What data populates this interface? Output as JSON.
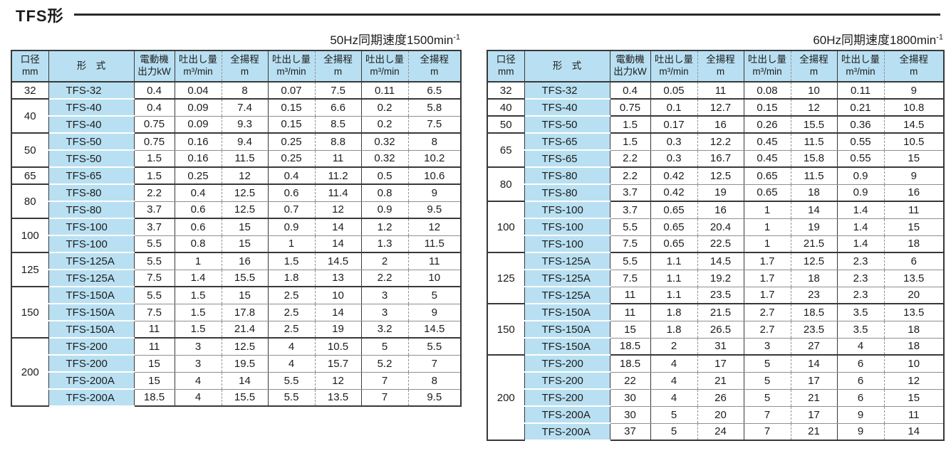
{
  "title": "TFS形",
  "column_headers": {
    "bore": [
      "口径",
      "mm"
    ],
    "model": [
      "形　式"
    ],
    "motor": [
      "電動機",
      "出力kW"
    ],
    "discharge": [
      "吐出し量",
      "m³/min"
    ],
    "head": [
      "全揚程",
      "m"
    ]
  },
  "colors": {
    "header_blue": "#b9e0f2",
    "border_dark": "#383838",
    "border_light": "#8f8f8f"
  },
  "tables": [
    {
      "id": "50hz",
      "caption_text": "50Hz同期速度1500min",
      "caption_sup": "-1",
      "groups": [
        {
          "bore": "32",
          "rows": [
            [
              "TFS-32",
              "0.4",
              "0.04",
              "8",
              "0.07",
              "7.5",
              "0.11",
              "6.5"
            ]
          ]
        },
        {
          "bore": "40",
          "rows": [
            [
              "TFS-40",
              "0.4",
              "0.09",
              "7.4",
              "0.15",
              "6.6",
              "0.2",
              "5.8"
            ],
            [
              "TFS-40",
              "0.75",
              "0.09",
              "9.3",
              "0.15",
              "8.5",
              "0.2",
              "7.5"
            ]
          ]
        },
        {
          "bore": "50",
          "rows": [
            [
              "TFS-50",
              "0.75",
              "0.16",
              "9.4",
              "0.25",
              "8.8",
              "0.32",
              "8"
            ],
            [
              "TFS-50",
              "1.5",
              "0.16",
              "11.5",
              "0.25",
              "11",
              "0.32",
              "10.2"
            ]
          ]
        },
        {
          "bore": "65",
          "rows": [
            [
              "TFS-65",
              "1.5",
              "0.25",
              "12",
              "0.4",
              "11.2",
              "0.5",
              "10.6"
            ]
          ]
        },
        {
          "bore": "80",
          "rows": [
            [
              "TFS-80",
              "2.2",
              "0.4",
              "12.5",
              "0.6",
              "11.4",
              "0.8",
              "9"
            ],
            [
              "TFS-80",
              "3.7",
              "0.6",
              "12.5",
              "0.7",
              "12",
              "0.9",
              "9.5"
            ]
          ]
        },
        {
          "bore": "100",
          "rows": [
            [
              "TFS-100",
              "3.7",
              "0.6",
              "15",
              "0.9",
              "14",
              "1.2",
              "12"
            ],
            [
              "TFS-100",
              "5.5",
              "0.8",
              "15",
              "1",
              "14",
              "1.3",
              "11.5"
            ]
          ]
        },
        {
          "bore": "125",
          "rows": [
            [
              "TFS-125A",
              "5.5",
              "1",
              "16",
              "1.5",
              "14.5",
              "2",
              "11"
            ],
            [
              "TFS-125A",
              "7.5",
              "1.4",
              "15.5",
              "1.8",
              "13",
              "2.2",
              "10"
            ]
          ]
        },
        {
          "bore": "150",
          "rows": [
            [
              "TFS-150A",
              "5.5",
              "1.5",
              "15",
              "2.5",
              "10",
              "3",
              "5"
            ],
            [
              "TFS-150A",
              "7.5",
              "1.5",
              "17.8",
              "2.5",
              "14",
              "3",
              "9"
            ],
            [
              "TFS-150A",
              "11",
              "1.5",
              "21.4",
              "2.5",
              "19",
              "3.2",
              "14.5"
            ]
          ]
        },
        {
          "bore": "200",
          "rows": [
            [
              "TFS-200",
              "11",
              "3",
              "12.5",
              "4",
              "10.5",
              "5",
              "5.5"
            ],
            [
              "TFS-200",
              "15",
              "3",
              "19.5",
              "4",
              "15.7",
              "5.2",
              "7"
            ],
            [
              "TFS-200A",
              "15",
              "4",
              "14",
              "5.5",
              "12",
              "7",
              "8"
            ],
            [
              "TFS-200A",
              "18.5",
              "4",
              "15.5",
              "5.5",
              "13.5",
              "7",
              "9.5"
            ]
          ]
        }
      ]
    },
    {
      "id": "60hz",
      "caption_text": "60Hz同期速度1800min",
      "caption_sup": "-1",
      "groups": [
        {
          "bore": "32",
          "rows": [
            [
              "TFS-32",
              "0.4",
              "0.05",
              "11",
              "0.08",
              "10",
              "0.11",
              "9"
            ]
          ]
        },
        {
          "bore": "40",
          "rows": [
            [
              "TFS-40",
              "0.75",
              "0.1",
              "12.7",
              "0.15",
              "12",
              "0.21",
              "10.8"
            ]
          ]
        },
        {
          "bore": "50",
          "rows": [
            [
              "TFS-50",
              "1.5",
              "0.17",
              "16",
              "0.26",
              "15.5",
              "0.36",
              "14.5"
            ]
          ]
        },
        {
          "bore": "65",
          "rows": [
            [
              "TFS-65",
              "1.5",
              "0.3",
              "12.2",
              "0.45",
              "11.5",
              "0.55",
              "10.5"
            ],
            [
              "TFS-65",
              "2.2",
              "0.3",
              "16.7",
              "0.45",
              "15.8",
              "0.55",
              "15"
            ]
          ]
        },
        {
          "bore": "80",
          "rows": [
            [
              "TFS-80",
              "2.2",
              "0.42",
              "12.5",
              "0.65",
              "11.5",
              "0.9",
              "9"
            ],
            [
              "TFS-80",
              "3.7",
              "0.42",
              "19",
              "0.65",
              "18",
              "0.9",
              "16"
            ]
          ]
        },
        {
          "bore": "100",
          "rows": [
            [
              "TFS-100",
              "3.7",
              "0.65",
              "16",
              "1",
              "14",
              "1.4",
              "11"
            ],
            [
              "TFS-100",
              "5.5",
              "0.65",
              "20.4",
              "1",
              "19",
              "1.4",
              "15"
            ],
            [
              "TFS-100",
              "7.5",
              "0.65",
              "22.5",
              "1",
              "21.5",
              "1.4",
              "18"
            ]
          ]
        },
        {
          "bore": "125",
          "rows": [
            [
              "TFS-125A",
              "5.5",
              "1.1",
              "14.5",
              "1.7",
              "12.5",
              "2.3",
              "6"
            ],
            [
              "TFS-125A",
              "7.5",
              "1.1",
              "19.2",
              "1.7",
              "18",
              "2.3",
              "13.5"
            ],
            [
              "TFS-125A",
              "11",
              "1.1",
              "23.5",
              "1.7",
              "23",
              "2.3",
              "20"
            ]
          ]
        },
        {
          "bore": "150",
          "rows": [
            [
              "TFS-150A",
              "11",
              "1.8",
              "21.5",
              "2.7",
              "18.5",
              "3.5",
              "13.5"
            ],
            [
              "TFS-150A",
              "15",
              "1.8",
              "26.5",
              "2.7",
              "23.5",
              "3.5",
              "18"
            ],
            [
              "TFS-150A",
              "18.5",
              "2",
              "31",
              "3",
              "27",
              "4",
              "18"
            ]
          ]
        },
        {
          "bore": "200",
          "rows": [
            [
              "TFS-200",
              "18.5",
              "4",
              "17",
              "5",
              "14",
              "6",
              "10"
            ],
            [
              "TFS-200",
              "22",
              "4",
              "21",
              "5",
              "17",
              "6",
              "12"
            ],
            [
              "TFS-200",
              "30",
              "4",
              "26",
              "5",
              "21",
              "6",
              "15"
            ],
            [
              "TFS-200A",
              "30",
              "5",
              "20",
              "7",
              "17",
              "9",
              "11"
            ],
            [
              "TFS-200A",
              "37",
              "5",
              "24",
              "7",
              "21",
              "9",
              "14"
            ]
          ]
        }
      ]
    }
  ]
}
